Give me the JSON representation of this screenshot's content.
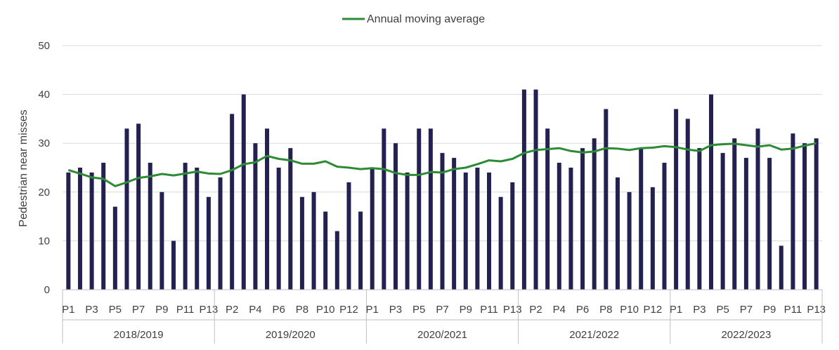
{
  "chart_data": {
    "type": "bar",
    "ylabel": "Pedestrian near misses",
    "ylim": [
      0,
      50
    ],
    "yticks": [
      0,
      10,
      20,
      30,
      40,
      50
    ],
    "grid": true,
    "legend_position": "top-center",
    "colors": {
      "bar": "#22214f",
      "line": "#2e8b35",
      "grid": "#d9d9d9",
      "axis": "#bfbfbf"
    },
    "groups": [
      "2018/2019",
      "2019/2020",
      "2020/2021",
      "2021/2022",
      "2022/2023"
    ],
    "periods": [
      "P1",
      "P2",
      "P3",
      "P4",
      "P5",
      "P6",
      "P7",
      "P8",
      "P9",
      "P10",
      "P11",
      "P12",
      "P13"
    ],
    "shown_period_labels": {
      "2018/2019": [
        "P1",
        "P3",
        "P5",
        "P7",
        "P9",
        "P11",
        "P13"
      ],
      "2019/2020": [
        "P2",
        "P4",
        "P6",
        "P8",
        "P10",
        "P12"
      ],
      "2020/2021": [
        "P1",
        "P3",
        "P5",
        "P7",
        "P9",
        "P11",
        "P13"
      ],
      "2021/2022": [
        "P2",
        "P4",
        "P6",
        "P8",
        "P10",
        "P12"
      ],
      "2022/2023": [
        "P1",
        "P3",
        "P5",
        "P7",
        "P9",
        "P11",
        "P13"
      ]
    },
    "series": [
      {
        "name": "",
        "type": "bar",
        "values": [
          24,
          25,
          24,
          26,
          17,
          33,
          34,
          26,
          20,
          10,
          26,
          25,
          19,
          23,
          36,
          40,
          30,
          33,
          25,
          29,
          19,
          20,
          16,
          12,
          22,
          16,
          25,
          33,
          30,
          24,
          33,
          33,
          28,
          27,
          24,
          25,
          24,
          19,
          22,
          41,
          41,
          33,
          26,
          25,
          29,
          31,
          37,
          23,
          20,
          29,
          21,
          26,
          37,
          35,
          29,
          40,
          28,
          31,
          27,
          33,
          27,
          9,
          32,
          30,
          31
        ]
      },
      {
        "name": "Annual moving average",
        "type": "line",
        "values": [
          24.5,
          23.8,
          23.0,
          22.7,
          21.2,
          22.0,
          22.9,
          23.2,
          23.7,
          23.4,
          23.8,
          24.2,
          23.8,
          23.7,
          24.5,
          25.7,
          26.1,
          27.4,
          26.8,
          26.5,
          25.8,
          25.8,
          26.3,
          25.2,
          25.0,
          24.7,
          24.9,
          24.7,
          23.9,
          23.5,
          23.5,
          24.1,
          24.0,
          24.7,
          25.0,
          25.7,
          26.5,
          26.3,
          26.8,
          28.0,
          28.6,
          28.8,
          29.0,
          28.4,
          28.1,
          28.3,
          29.0,
          28.9,
          28.6,
          29.0,
          29.1,
          29.4,
          29.2,
          28.7,
          28.4,
          29.6,
          29.8,
          29.9,
          29.6,
          29.3,
          29.6,
          28.7,
          28.9,
          29.5,
          30.0
        ]
      }
    ]
  }
}
